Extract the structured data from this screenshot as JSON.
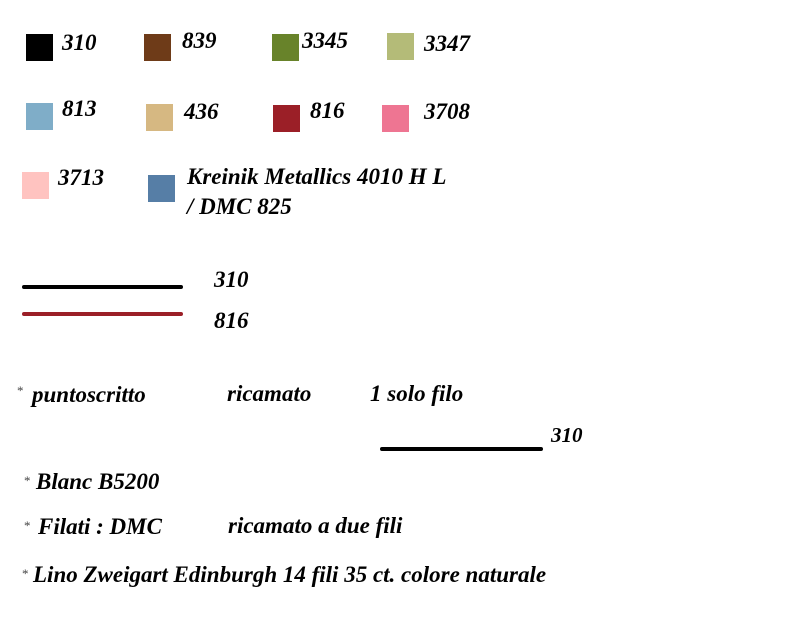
{
  "swatches": [
    {
      "code": "310",
      "color": "#000000"
    },
    {
      "code": "839",
      "color": "#6e3b18"
    },
    {
      "code": "3345",
      "color": "#68832a"
    },
    {
      "code": "3347",
      "color": "#b4bb78"
    },
    {
      "code": "813",
      "color": "#7fadc8"
    },
    {
      "code": "436",
      "color": "#d6b882"
    },
    {
      "code": "816",
      "color": "#9b1f27"
    },
    {
      "code": "3708",
      "color": "#ee7592"
    },
    {
      "code": "3713",
      "color": "#ffc3c0"
    },
    {
      "code": "Kreinik Metallics 4010 H L",
      "code_line2": "/ DMC 825",
      "color": "#567ea6"
    }
  ],
  "backstitch": [
    {
      "code": "310",
      "color": "#000000"
    },
    {
      "code": "816",
      "color": "#9b1f27"
    }
  ],
  "notes": {
    "asterisk": "*",
    "puntoscritto": "puntoscritto",
    "ricamato": "ricamato",
    "one_thread": "1 solo filo",
    "puntoscritto_code": "310",
    "blanc": "Blanc B5200",
    "filati": "Filati : DMC",
    "two_threads": "ricamato a due fili",
    "fabric": "Lino Zweigart  Edinburgh  14 fili 35 ct. colore  naturale"
  }
}
